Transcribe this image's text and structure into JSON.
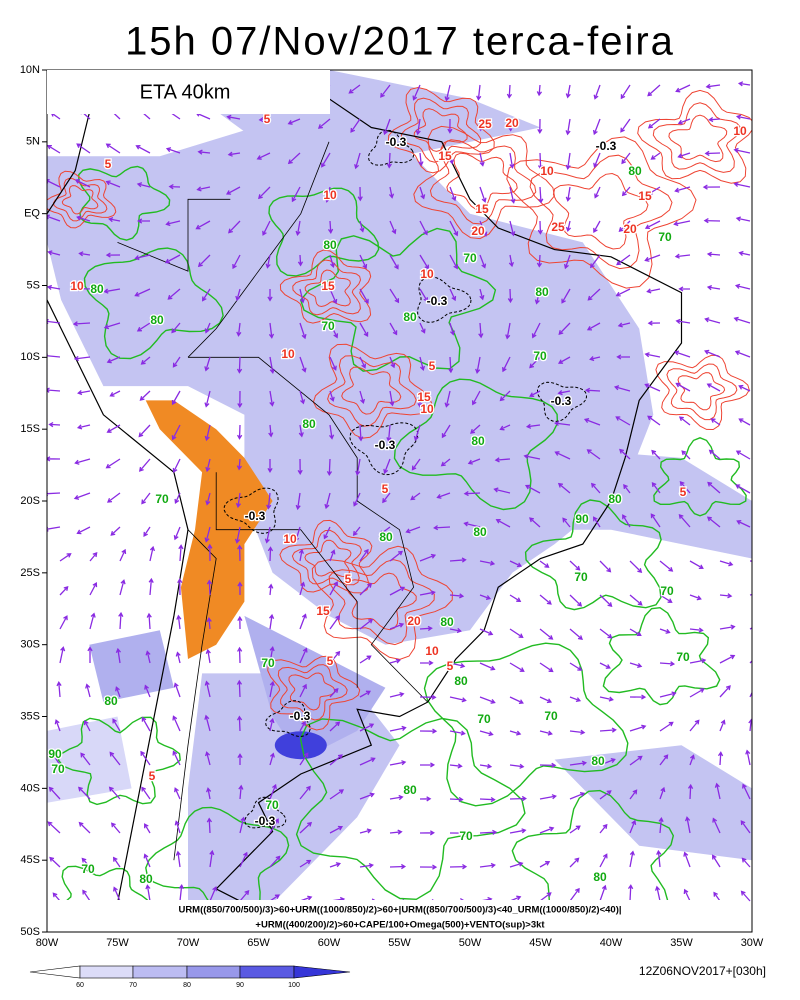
{
  "header": {
    "title": "15h 07/Nov/2017 terca-feira"
  },
  "map": {
    "model_label": "ETA 40km",
    "lat_labels": [
      "10N",
      "5N",
      "EQ",
      "5S",
      "10S",
      "15S",
      "20S",
      "25S",
      "30S",
      "35S",
      "40S",
      "45S",
      "50S"
    ],
    "lon_labels": [
      "80W",
      "75W",
      "70W",
      "65W",
      "60W",
      "55W",
      "50W",
      "45W",
      "40W",
      "35W",
      "30W"
    ],
    "legend_lines": [
      "URM((850/700/500)/3)>60+URM((1000/850)/2)>60+|URM((850/700/500)/3)<40_URM((1000/850)/2)<40)|",
      "+URM((400/200)/2)>60+CAPE/100+Omega(500)+VENTO(sup)>3kt"
    ],
    "contour_labels": [
      "-0.3",
      "-0.3",
      "-0.3",
      "-0.3",
      "-0.3",
      "-0.3",
      "-0.3",
      "-0.3",
      "10",
      "15",
      "10",
      "15",
      "20",
      "25",
      "20",
      "15",
      "10",
      "5",
      "10",
      "15",
      "10",
      "5",
      "15",
      "10",
      "5",
      "10",
      "5",
      "15",
      "20",
      "10",
      "5",
      "5",
      "10",
      "5",
      "5",
      "25",
      "20",
      "5",
      "80",
      "80",
      "70",
      "80",
      "80",
      "70",
      "80",
      "70",
      "80",
      "80",
      "70",
      "80",
      "80",
      "80",
      "70",
      "70",
      "70",
      "70",
      "70",
      "80",
      "80",
      "90",
      "70",
      "80",
      "80",
      "70",
      "70",
      "80",
      "80",
      "70",
      "80",
      "70",
      "80",
      "90",
      "70"
    ]
  },
  "colorbar": {
    "labels": [
      "60",
      "70",
      "80",
      "90",
      "100"
    ]
  },
  "footer": {
    "run_info": "12Z06NOV2017+[030h]"
  }
}
